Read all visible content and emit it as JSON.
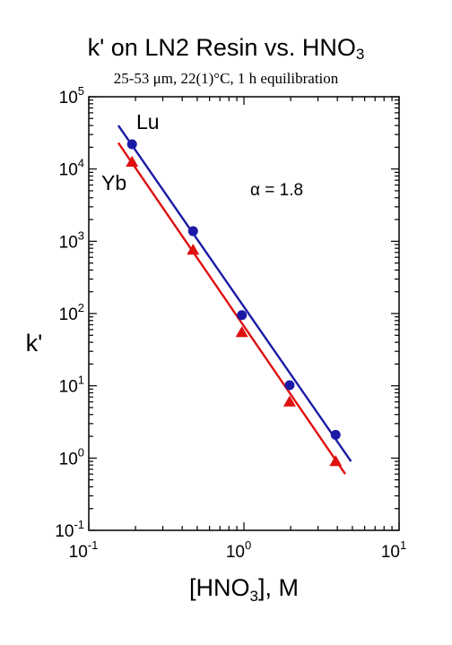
{
  "title": {
    "main": "k' on LN2 Resin vs. HNO",
    "main_sub": "3",
    "subtitle": "25-53 μm, 22(1)°C, 1 h equilibration"
  },
  "chart_data": {
    "type": "scatter",
    "x_scale": "log",
    "y_scale": "log",
    "xlim": [
      0.1,
      10
    ],
    "ylim": [
      0.1,
      100000
    ],
    "xlabel": "[HNO3], M",
    "ylabel": "k'",
    "x_ticks": [
      {
        "value": 0.1,
        "base": "10",
        "exp": "-1"
      },
      {
        "value": 1,
        "base": "10",
        "exp": "0"
      },
      {
        "value": 10,
        "base": "10",
        "exp": "1"
      }
    ],
    "y_ticks": [
      {
        "value": 0.1,
        "base": "10",
        "exp": "-1"
      },
      {
        "value": 1,
        "base": "10",
        "exp": "0"
      },
      {
        "value": 10,
        "base": "10",
        "exp": "1"
      },
      {
        "value": 100,
        "base": "10",
        "exp": "2"
      },
      {
        "value": 1000,
        "base": "10",
        "exp": "3"
      },
      {
        "value": 10000,
        "base": "10",
        "exp": "4"
      },
      {
        "value": 100000,
        "base": "10",
        "exp": "5"
      }
    ],
    "grid": false,
    "series": [
      {
        "name": "Lu",
        "color": "#1a1aa6",
        "marker": "circle",
        "x": [
          0.19,
          0.47,
          0.97,
          1.97,
          3.9
        ],
        "y": [
          22000,
          1380,
          95,
          10.2,
          2.1
        ],
        "fit_line": {
          "x": [
            0.155,
            4.9
          ],
          "y": [
            40000,
            0.9
          ]
        }
      },
      {
        "name": "Yb",
        "color": "#e01010",
        "marker": "triangle",
        "x": [
          0.19,
          0.47,
          0.97,
          1.97,
          3.9
        ],
        "y": [
          12500,
          760,
          55,
          6.0,
          0.9
        ],
        "fit_line": {
          "x": [
            0.155,
            4.5
          ],
          "y": [
            23000,
            0.6
          ]
        }
      }
    ],
    "annotations": [
      {
        "text": "α = 1.8"
      }
    ]
  }
}
